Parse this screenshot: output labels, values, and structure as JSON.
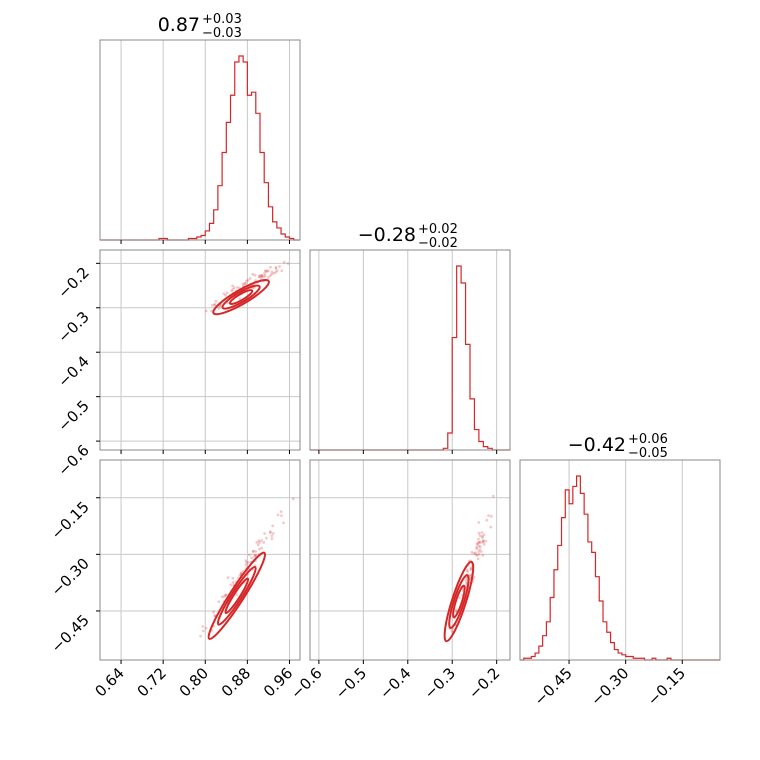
{
  "chart_data": {
    "type": "corner",
    "color": "#d62728",
    "parameters": [
      {
        "title": {
          "median": "0.87",
          "plus": "+0.03",
          "minus": "−0.03"
        },
        "range": [
          0.6,
          0.98
        ],
        "ticks": [
          0.64,
          0.72,
          0.8,
          0.88,
          0.96
        ],
        "tick_labels": [
          "0.64",
          "0.72",
          "0.80",
          "0.88",
          "0.96"
        ]
      },
      {
        "title": {
          "median": "−0.28",
          "plus": "+0.02",
          "minus": "−0.02"
        },
        "range": [
          -0.62,
          -0.17
        ],
        "ticks": [
          -0.6,
          -0.5,
          -0.4,
          -0.3,
          -0.2
        ],
        "tick_labels": [
          "−0.6",
          "−0.5",
          "−0.4",
          "−0.3",
          "−0.2"
        ]
      },
      {
        "title": {
          "median": "−0.42",
          "plus": "+0.06",
          "minus": "−0.05"
        },
        "range": [
          -0.58,
          -0.05
        ],
        "ticks": [
          -0.45,
          -0.3,
          -0.15
        ],
        "tick_labels": [
          "−0.45",
          "−0.30",
          "−0.15"
        ]
      }
    ],
    "histograms": [
      {
        "bin_edges": [
          0.6,
          0.608,
          0.616,
          0.624,
          0.632,
          0.64,
          0.648,
          0.656,
          0.664,
          0.672,
          0.68,
          0.688,
          0.696,
          0.704,
          0.712,
          0.72,
          0.728,
          0.736,
          0.744,
          0.752,
          0.76,
          0.768,
          0.776,
          0.784,
          0.792,
          0.8,
          0.808,
          0.816,
          0.824,
          0.832,
          0.84,
          0.848,
          0.856,
          0.864,
          0.872,
          0.88,
          0.888,
          0.896,
          0.904,
          0.912,
          0.92,
          0.928,
          0.936,
          0.944,
          0.952,
          0.96,
          0.968,
          0.976,
          0.98
        ],
        "counts": [
          0,
          0,
          0,
          0,
          0,
          0,
          0,
          0,
          0,
          0,
          0,
          0,
          0,
          0,
          1,
          1,
          0,
          0,
          0,
          0,
          0,
          1,
          1,
          2,
          3,
          6,
          11,
          20,
          36,
          58,
          78,
          96,
          118,
          122,
          118,
          96,
          98,
          84,
          58,
          38,
          22,
          12,
          8,
          4,
          2,
          1,
          0,
          0
        ]
      },
      {
        "bin_edges": [
          -0.62,
          -0.61,
          -0.6,
          -0.59,
          -0.58,
          -0.57,
          -0.56,
          -0.55,
          -0.54,
          -0.53,
          -0.52,
          -0.51,
          -0.5,
          -0.49,
          -0.48,
          -0.47,
          -0.46,
          -0.45,
          -0.44,
          -0.43,
          -0.42,
          -0.41,
          -0.4,
          -0.39,
          -0.38,
          -0.37,
          -0.36,
          -0.35,
          -0.34,
          -0.33,
          -0.32,
          -0.31,
          -0.3,
          -0.29,
          -0.28,
          -0.27,
          -0.26,
          -0.25,
          -0.24,
          -0.23,
          -0.22,
          -0.21,
          -0.2,
          -0.19,
          -0.18,
          -0.17
        ],
        "counts": [
          0,
          0,
          0,
          0,
          0,
          0,
          0,
          0,
          0,
          0,
          0,
          0,
          0,
          0,
          0,
          0,
          0,
          0,
          0,
          0,
          0,
          0,
          0,
          0,
          0,
          0,
          0,
          0,
          0,
          0,
          1,
          10,
          66,
          108,
          98,
          62,
          30,
          12,
          5,
          2,
          1,
          0,
          0,
          0,
          0
        ]
      },
      {
        "bin_edges": [
          -0.58,
          -0.57,
          -0.56,
          -0.55,
          -0.54,
          -0.53,
          -0.52,
          -0.51,
          -0.5,
          -0.49,
          -0.48,
          -0.47,
          -0.46,
          -0.45,
          -0.44,
          -0.43,
          -0.42,
          -0.41,
          -0.4,
          -0.39,
          -0.38,
          -0.37,
          -0.36,
          -0.35,
          -0.34,
          -0.33,
          -0.32,
          -0.31,
          -0.3,
          -0.29,
          -0.28,
          -0.27,
          -0.26,
          -0.25,
          -0.24,
          -0.23,
          -0.22,
          -0.21,
          -0.2,
          -0.19,
          -0.18,
          -0.17,
          -0.16,
          -0.15,
          -0.14,
          -0.13,
          -0.12,
          -0.11,
          -0.1,
          -0.09,
          -0.08,
          -0.07,
          -0.06,
          -0.05
        ],
        "counts": [
          0,
          1,
          1,
          2,
          4,
          8,
          14,
          22,
          36,
          52,
          66,
          82,
          98,
          90,
          100,
          106,
          96,
          84,
          68,
          62,
          48,
          34,
          22,
          16,
          10,
          6,
          4,
          3,
          2,
          2,
          1,
          1,
          1,
          0,
          0,
          1,
          0,
          0,
          0,
          1,
          0,
          0,
          0,
          0,
          0,
          0,
          0,
          0,
          0,
          0,
          0,
          0,
          0
        ]
      }
    ],
    "grid": true
  }
}
